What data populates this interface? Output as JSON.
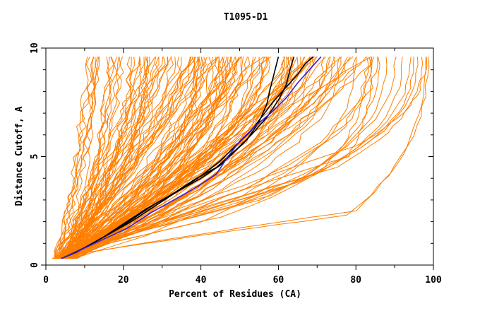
{
  "chart_data": {
    "type": "line",
    "title": "T1095-D1",
    "xlabel": "Percent of Residues (CA)",
    "ylabel": "Distance Cutoff, A",
    "xlim": [
      0,
      100
    ],
    "ylim": [
      0,
      10
    ],
    "x_ticks": [
      "0",
      "20",
      "40",
      "60",
      "80",
      "100"
    ],
    "y_ticks": [
      "0",
      "5",
      "10"
    ],
    "grid": false,
    "legend": "none",
    "colors": {
      "model": "#ff7f00",
      "reference": "#000000",
      "highlight": "#3b1fd6"
    },
    "series_groups": [
      {
        "role": "model curves (orange)",
        "color": "#ff7f00",
        "count": 150,
        "x_at_cutoff_10_range": [
          10,
          98
        ]
      }
    ],
    "series": [
      {
        "color": "#000000",
        "x": [
          4,
          8,
          14,
          18,
          23,
          28,
          34,
          40,
          45,
          48,
          52,
          55,
          57,
          58,
          59,
          60
        ],
        "y": [
          0.3,
          0.6,
          1.2,
          1.6,
          2.2,
          2.8,
          3.4,
          4.0,
          4.6,
          5.1,
          5.8,
          6.6,
          7.4,
          8.2,
          8.9,
          9.6
        ]
      },
      {
        "color": "#000000",
        "x": [
          4,
          9,
          15,
          20,
          26,
          32,
          38,
          44,
          49,
          53,
          57,
          60,
          62,
          63,
          64
        ],
        "y": [
          0.3,
          0.7,
          1.3,
          1.9,
          2.6,
          3.2,
          3.9,
          4.5,
          5.3,
          6.0,
          6.8,
          7.6,
          8.3,
          9.0,
          9.6
        ]
      },
      {
        "color": "#000000",
        "x": [
          4,
          10,
          16,
          22,
          28,
          34,
          40,
          45,
          49,
          53,
          56,
          59,
          62,
          65,
          67,
          69
        ],
        "y": [
          0.3,
          0.8,
          1.4,
          2.0,
          2.7,
          3.4,
          4.1,
          4.8,
          5.5,
          6.2,
          6.9,
          7.6,
          8.2,
          8.8,
          9.3,
          9.6
        ]
      },
      {
        "color": "#3b1fd6",
        "x": [
          4,
          9,
          15,
          21,
          27,
          33,
          39,
          44,
          47,
          50,
          54,
          58,
          62,
          65,
          68,
          71
        ],
        "y": [
          0.3,
          0.7,
          1.2,
          1.7,
          2.4,
          3.0,
          3.6,
          4.2,
          5.0,
          5.7,
          6.4,
          7.0,
          7.7,
          8.4,
          9.0,
          9.6
        ]
      }
    ]
  }
}
